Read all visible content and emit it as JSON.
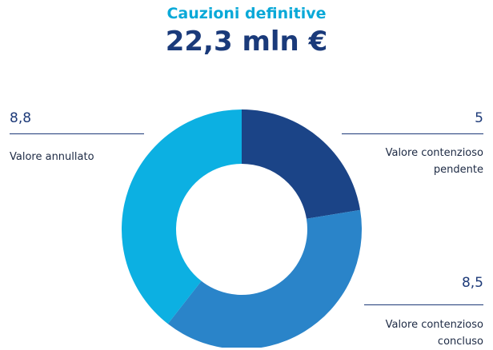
{
  "chart_data": {
    "type": "pie",
    "title": "Cauzioni definitive",
    "subtitle": "22,3 mln €",
    "categories": [
      "Valore contenzioso pendente",
      "Valore contenzioso concluso",
      "Valore annullato"
    ],
    "values": [
      5,
      8.5,
      8.8
    ],
    "value_labels": [
      "5",
      "8,5",
      "8,8"
    ],
    "colors": [
      "#1b4487",
      "#2a84c9",
      "#0cb0e2"
    ],
    "donut": true
  }
}
